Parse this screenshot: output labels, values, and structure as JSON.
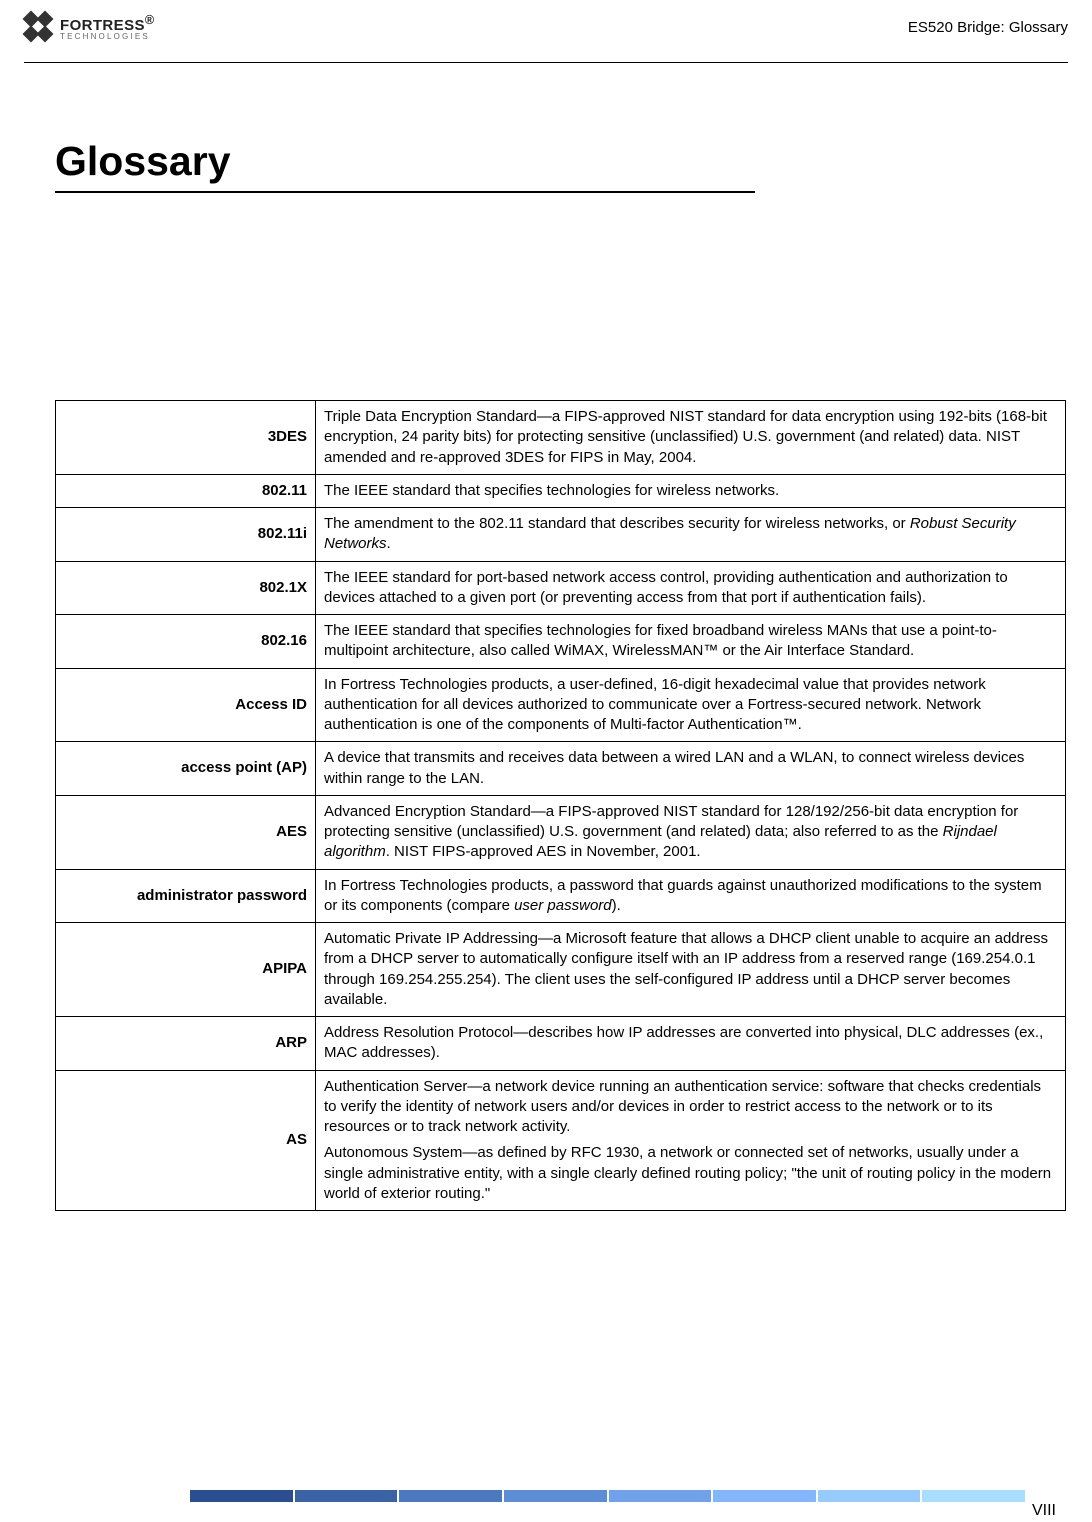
{
  "header": {
    "brand_line1": "FORTRESS",
    "brand_reg": "®",
    "brand_line2": "TECHNOLOGIES",
    "doc_title": "ES520 Bridge: Glossary"
  },
  "title": "Glossary",
  "glossary": [
    {
      "term": "3DES",
      "definition": "Triple Data Encryption Standard—a FIPS-approved NIST standard for data encryption using 192-bits (168-bit encryption, 24 parity bits) for protecting sensitive (unclassified) U.S. government (and related) data. NIST amended and re-approved 3DES for FIPS in May, 2004."
    },
    {
      "term": "802.11",
      "definition": "The IEEE standard that specifies technologies for wireless networks."
    },
    {
      "term": "802.11i",
      "definition": "The amendment to the 802.11 standard that describes security for wireless networks, or <em>Robust Security Networks</em>."
    },
    {
      "term": "802.1X",
      "definition": "The IEEE standard for port-based network access control, providing authentication and authorization to devices attached to a given port (or preventing access from that port if authentication fails)."
    },
    {
      "term": "802.16",
      "definition": "The IEEE standard that specifies technologies for fixed broadband wireless MANs that use a point-to-multipoint architecture, also called WiMAX, WirelessMAN™ or the Air Interface Standard."
    },
    {
      "term": "Access ID",
      "definition": "In Fortress Technologies products, a user-defined, 16-digit hexadecimal value that provides network authentication for all devices authorized to communicate over a Fortress-secured network. Network authentication is one of the components of Multi-factor Authentication™."
    },
    {
      "term": "access point (AP)",
      "definition": "A device that transmits and receives data between a wired LAN and a WLAN, to connect wireless devices within range to the LAN."
    },
    {
      "term": "AES",
      "definition": "Advanced Encryption Standard—a FIPS-approved NIST standard for 128/192/256-bit data encryption for protecting sensitive (unclassified) U.S. government (and related) data; also referred to as the <em>Rijndael algorithm</em>. NIST FIPS-approved AES in November, 2001."
    },
    {
      "term": "administrator password",
      "definition": "In Fortress Technologies products, a password that guards against unauthorized modifications to the system or its components (compare <em>user password</em>)."
    },
    {
      "term": "APIPA",
      "definition": "Automatic Private IP Addressing—a Microsoft feature that allows a DHCP client unable to acquire an address from a DHCP server to automatically configure itself with an IP address from a reserved range (169.254.0.1 through 169.254.255.254). The client uses the self-configured IP address until a DHCP server becomes available."
    },
    {
      "term": "ARP",
      "definition": "Address Resolution Protocol—describes how IP addresses are converted into physical, DLC addresses (ex., MAC addresses)."
    },
    {
      "term": "AS",
      "definition": "Authentication Server—a network device running an authentication service: software that checks credentials to verify the identity of network users and/or devices in order to restrict access to the network or to its resources or to track network activity.<span class=\"para2\">Autonomous System—as defined by RFC 1930, a network or connected set of networks, usually under a single administrative entity, with a single clearly defined routing policy; \"the unit of routing policy in the modern world of exterior routing.\"</span>"
    }
  ],
  "footer": {
    "page_number": "VIII",
    "bar_colors": [
      "#2a4e8f",
      "#3a63a7",
      "#4b78bf",
      "#5d8dd6",
      "#6fa2ea",
      "#82b7fb",
      "#95cbff",
      "#a8dfff"
    ]
  }
}
